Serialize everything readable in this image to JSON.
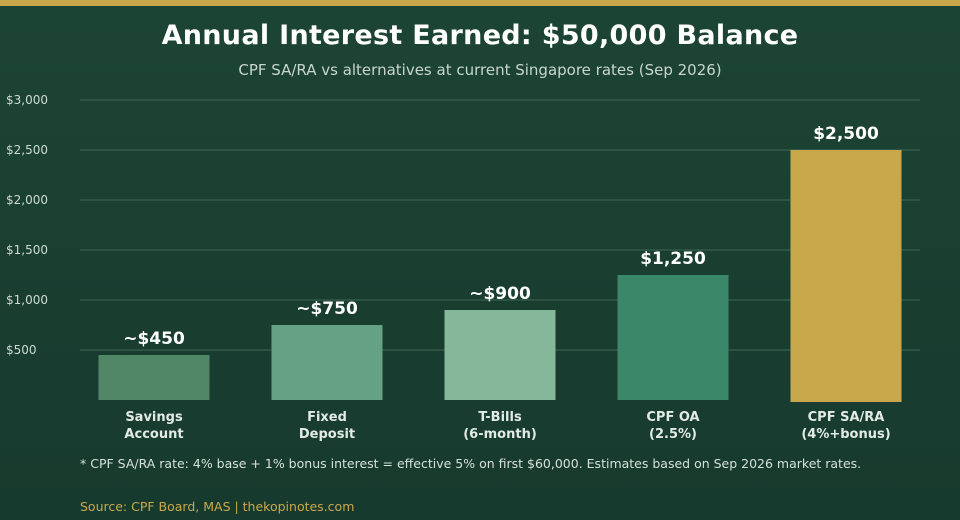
{
  "chart_data": {
    "type": "bar",
    "title": "Annual Interest Earned: $50,000 Balance",
    "subtitle": "CPF SA/RA vs alternatives at current Singapore rates (Sep 2026)",
    "categories": [
      [
        "Savings",
        "Account"
      ],
      [
        "Fixed",
        "Deposit"
      ],
      [
        "T-Bills",
        "(6-month)"
      ],
      [
        "CPF OA",
        "(2.5%)"
      ],
      [
        "CPF SA/RA",
        "(4%+bonus)"
      ]
    ],
    "values": [
      450,
      750,
      900,
      1250,
      2500
    ],
    "value_labels": [
      "~$450",
      "~$750",
      "~$900",
      "$1,250",
      "$2,500"
    ],
    "bar_colors": [
      "#518667",
      "#64a185",
      "#85b89a",
      "#3b876a",
      "#c9a84c"
    ],
    "ylim": [
      0,
      3000
    ],
    "yticks": [
      500,
      1000,
      1500,
      2000,
      2500,
      3000
    ],
    "ytick_labels": [
      "$500",
      "$1,000",
      "$1,500",
      "$2,000",
      "$2,500",
      "$3,000"
    ],
    "grid": true
  },
  "footnote": "* CPF SA/RA rate: 4% base + 1% bonus interest = effective 5% on first $60,000. Estimates based on Sep 2026 market rates.",
  "source": "Source: CPF Board, MAS | thekopinotes.com",
  "colors": {
    "accent": "#c9a84c",
    "background": "#1c4434",
    "gridline": "#3f6657"
  }
}
